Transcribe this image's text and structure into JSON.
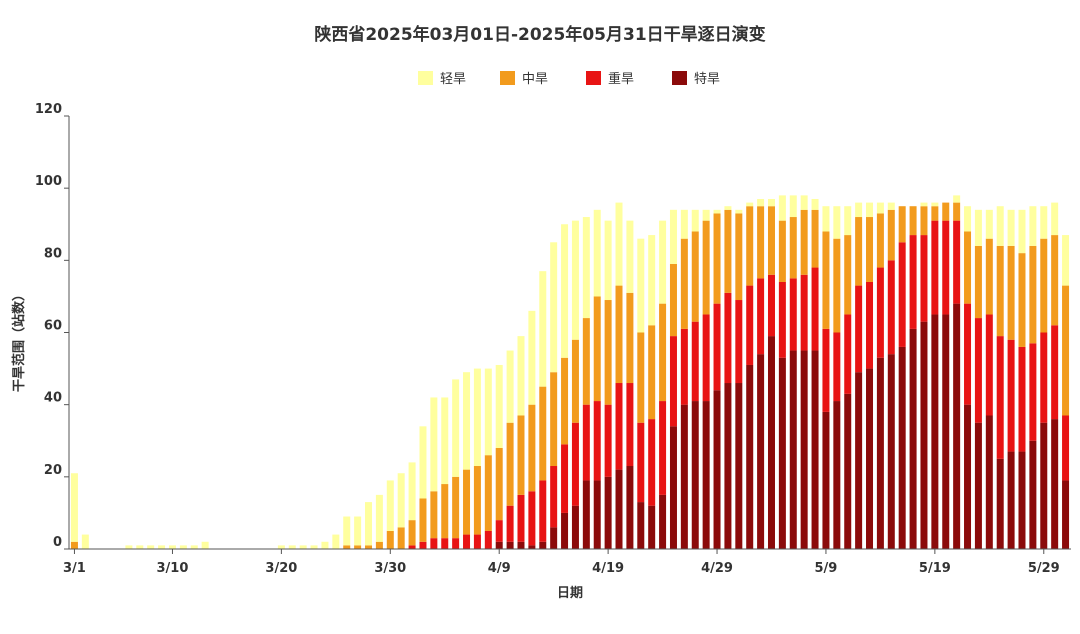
{
  "chart_data": {
    "type": "bar",
    "stacked": true,
    "title": "陕西省2025年03月01日-2025年05月31日干旱逐日演变",
    "xlabel": "日期",
    "ylabel": "干旱范围（站数）",
    "ylim": [
      0,
      120
    ],
    "yticks": [
      "0",
      "20",
      "40",
      "60",
      "80",
      "100",
      "120"
    ],
    "xtick_labels": [
      "3/1",
      "3/10",
      "3/20",
      "3/30",
      "4/9",
      "4/19",
      "4/29",
      "5/9",
      "5/19",
      "5/29"
    ],
    "xtick_index": [
      0,
      9,
      19,
      29,
      39,
      49,
      59,
      69,
      79,
      89
    ],
    "legend_placement": "top",
    "grid": false,
    "categories": [
      "3/1",
      "3/2",
      "3/3",
      "3/4",
      "3/5",
      "3/6",
      "3/7",
      "3/8",
      "3/9",
      "3/10",
      "3/11",
      "3/12",
      "3/13",
      "3/14",
      "3/15",
      "3/16",
      "3/17",
      "3/18",
      "3/19",
      "3/20",
      "3/21",
      "3/22",
      "3/23",
      "3/24",
      "3/25",
      "3/26",
      "3/27",
      "3/28",
      "3/29",
      "3/30",
      "3/31",
      "4/1",
      "4/2",
      "4/3",
      "4/4",
      "4/5",
      "4/6",
      "4/7",
      "4/8",
      "4/9",
      "4/10",
      "4/11",
      "4/12",
      "4/13",
      "4/14",
      "4/15",
      "4/16",
      "4/17",
      "4/18",
      "4/19",
      "4/20",
      "4/21",
      "4/22",
      "4/23",
      "4/24",
      "4/25",
      "4/26",
      "4/27",
      "4/28",
      "4/29",
      "4/30",
      "5/1",
      "5/2",
      "5/3",
      "5/4",
      "5/5",
      "5/6",
      "5/7",
      "5/8",
      "5/9",
      "5/10",
      "5/11",
      "5/12",
      "5/13",
      "5/14",
      "5/15",
      "5/16",
      "5/17",
      "5/18",
      "5/19",
      "5/20",
      "5/21",
      "5/22",
      "5/23",
      "5/24",
      "5/25",
      "5/26",
      "5/27",
      "5/28",
      "5/29",
      "5/30",
      "5/31"
    ],
    "series": [
      {
        "name": "特旱",
        "color": "#8B0A0A",
        "values": [
          0,
          0,
          0,
          0,
          0,
          0,
          0,
          0,
          0,
          0,
          0,
          0,
          0,
          0,
          0,
          0,
          0,
          0,
          0,
          0,
          0,
          0,
          0,
          0,
          0,
          0,
          0,
          0,
          0,
          0,
          0,
          0,
          0,
          0,
          0,
          0,
          0,
          0,
          0,
          2,
          2,
          2,
          1,
          2,
          6,
          10,
          12,
          19,
          19,
          20,
          22,
          23,
          13,
          12,
          15,
          34,
          40,
          41,
          41,
          44,
          46,
          46,
          51,
          54,
          59,
          53,
          55,
          55,
          55,
          38,
          41,
          43,
          49,
          50,
          53,
          54,
          56,
          61,
          63,
          65,
          65,
          68,
          40,
          35,
          37,
          25,
          27,
          27,
          30,
          35,
          36,
          19
        ]
      },
      {
        "name": "重旱",
        "color": "#E81414",
        "values": [
          0,
          0,
          0,
          0,
          0,
          0,
          0,
          0,
          0,
          0,
          0,
          0,
          0,
          0,
          0,
          0,
          0,
          0,
          0,
          0,
          0,
          0,
          0,
          0,
          0,
          0,
          0,
          0,
          0,
          0,
          0,
          1,
          2,
          3,
          3,
          3,
          4,
          4,
          5,
          6,
          10,
          13,
          15,
          17,
          17,
          19,
          23,
          21,
          22,
          20,
          24,
          23,
          22,
          24,
          26,
          25,
          21,
          22,
          24,
          24,
          25,
          23,
          22,
          21,
          17,
          21,
          20,
          21,
          23,
          23,
          19,
          22,
          24,
          24,
          25,
          26,
          29,
          26,
          24,
          26,
          26,
          23,
          28,
          29,
          28,
          34,
          31,
          29,
          27,
          25,
          26,
          18
        ]
      },
      {
        "name": "中旱",
        "color": "#F29B1D",
        "values": [
          2,
          0,
          0,
          0,
          0,
          0,
          0,
          0,
          0,
          0,
          0,
          0,
          0,
          0,
          0,
          0,
          0,
          0,
          0,
          0,
          0,
          0,
          0,
          0,
          0,
          1,
          1,
          1,
          2,
          5,
          6,
          7,
          12,
          13,
          15,
          17,
          18,
          19,
          21,
          20,
          23,
          22,
          24,
          26,
          26,
          24,
          23,
          24,
          29,
          29,
          27,
          25,
          25,
          26,
          27,
          20,
          25,
          25,
          26,
          25,
          23,
          24,
          22,
          20,
          19,
          17,
          17,
          18,
          16,
          27,
          26,
          22,
          19,
          18,
          15,
          14,
          10,
          8,
          8,
          4,
          5,
          5,
          20,
          20,
          21,
          25,
          26,
          26,
          27,
          26,
          25,
          36
        ]
      },
      {
        "name": "轻旱",
        "color": "#FFFF9E",
        "values": [
          19,
          4,
          0,
          0,
          0,
          1,
          1,
          1,
          1,
          1,
          1,
          1,
          2,
          0,
          0,
          0,
          0,
          0,
          0,
          1,
          1,
          1,
          1,
          2,
          4,
          8,
          8,
          12,
          13,
          14,
          15,
          16,
          20,
          26,
          24,
          27,
          27,
          27,
          24,
          23,
          20,
          22,
          26,
          32,
          36,
          37,
          33,
          28,
          24,
          22,
          23,
          20,
          26,
          25,
          23,
          15,
          8,
          6,
          3,
          1,
          1,
          1,
          1,
          2,
          2,
          7,
          6,
          4,
          3,
          7,
          9,
          8,
          4,
          4,
          3,
          2,
          0,
          0,
          1,
          1,
          0,
          2,
          7,
          10,
          8,
          11,
          10,
          12,
          11,
          9,
          9,
          14
        ]
      }
    ],
    "legend": [
      {
        "name": "轻旱",
        "color": "#FFFF9E"
      },
      {
        "name": "中旱",
        "color": "#F29B1D"
      },
      {
        "name": "重旱",
        "color": "#E81414"
      },
      {
        "name": "特旱",
        "color": "#8B0A0A"
      }
    ]
  }
}
